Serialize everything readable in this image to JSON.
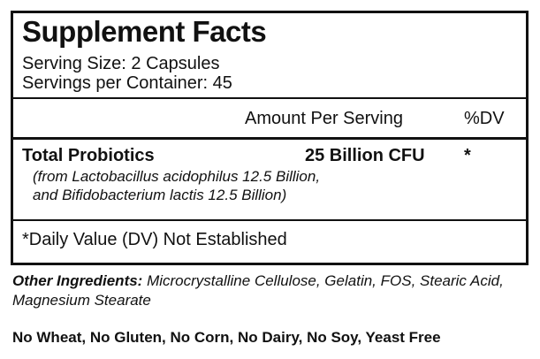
{
  "title": "Supplement Facts",
  "serving_size": "Serving Size: 2 Capsules",
  "servings_per_container": "Servings per Container: 45",
  "header": {
    "amount": "Amount Per Serving",
    "dv": "%DV"
  },
  "row": {
    "name": "Total Probiotics",
    "amount": "25 Billion CFU",
    "dv": "*",
    "detail1": "(from Lactobacillus acidophilus 12.5 Billion,",
    "detail2": "and Bifidobacterium lactis 12.5 Billion)"
  },
  "footnote": "*Daily Value (DV) Not Established",
  "other_label": "Other Ingredients:",
  "other_text": " Microcrystalline Cellulose, Gelatin, FOS, Stearic Acid,",
  "other_text2": "Magnesium Stearate",
  "free_from": "No Wheat, No Gluten, No Corn, No Dairy, No Soy, Yeast Free"
}
